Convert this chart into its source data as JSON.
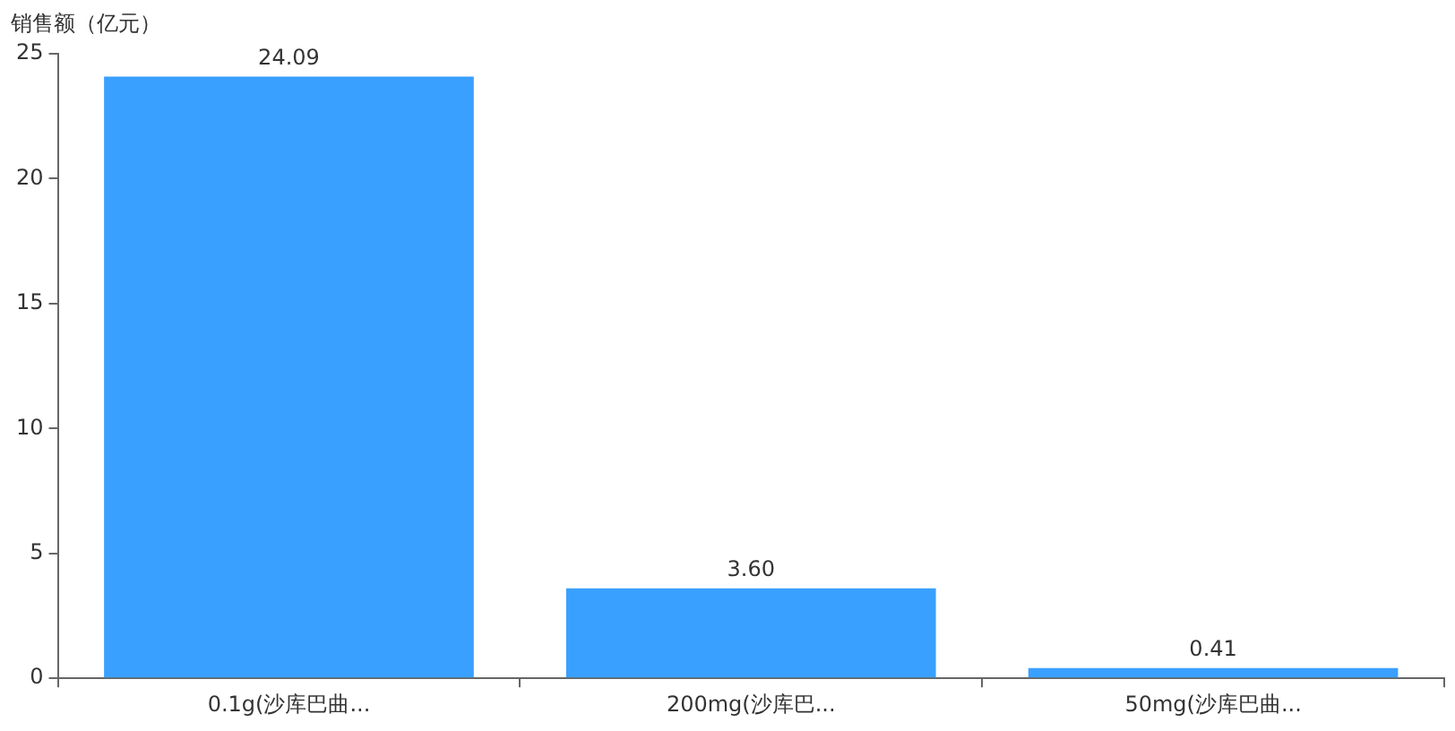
{
  "chart_data": {
    "type": "bar",
    "ylabel": "销售额（亿元）",
    "categories": [
      "0.1g(沙库巴曲...",
      "200mg(沙库巴...",
      "50mg(沙库巴曲..."
    ],
    "values": [
      24.09,
      3.6,
      0.41
    ],
    "value_labels": [
      "24.09",
      "3.60",
      "0.41"
    ],
    "color": "#3aa0ff",
    "ylim": [
      0,
      25
    ],
    "yticks": [
      0,
      5,
      10,
      15,
      20,
      25
    ],
    "grid": false,
    "legend": false
  }
}
